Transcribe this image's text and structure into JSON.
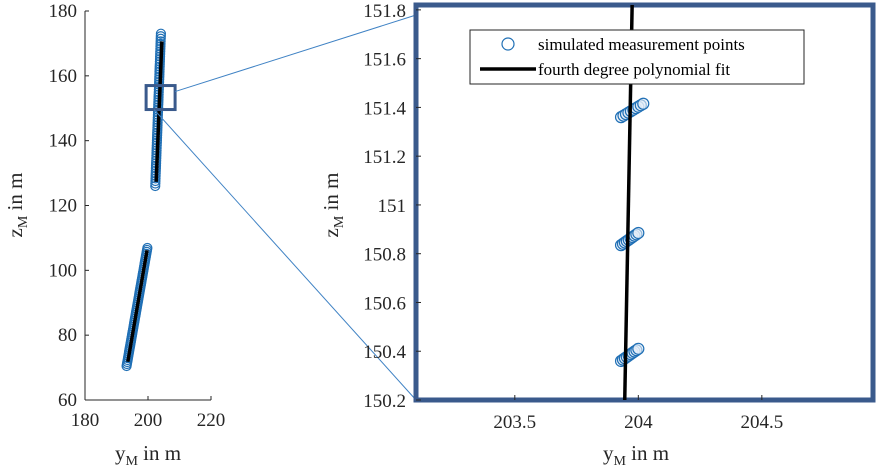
{
  "chart_data": [
    {
      "type": "scatter",
      "panel": "overview",
      "xlabel": {
        "main": "y",
        "sub": "M",
        "rest": " in m"
      },
      "ylabel": {
        "main": "z",
        "sub": "M",
        "rest": " in m"
      },
      "xlim": [
        180,
        220
      ],
      "ylim": [
        60,
        180
      ],
      "xticks": [
        "180",
        "200",
        "220"
      ],
      "xtick_values": [
        180,
        200,
        220
      ],
      "yticks": [
        "60",
        "80",
        "100",
        "120",
        "140",
        "160",
        "180"
      ],
      "ytick_values": [
        60,
        80,
        100,
        120,
        140,
        160,
        180
      ],
      "zoom_box": {
        "xmin": 199.4,
        "xmax": 208.6,
        "ymin": 149.6,
        "ymax": 157.0
      },
      "series": [
        {
          "name": "simulated measurement points",
          "kind": "markers",
          "segments": [
            {
              "x_start": 193.2,
              "y_start": 70.5,
              "x_end": 199.8,
              "y_end": 106.9
            },
            {
              "x_start": 202.3,
              "y_start": 126.0,
              "x_end": 204.1,
              "y_end": 173.0
            }
          ]
        },
        {
          "name": "fourth degree polynomial fit",
          "kind": "line",
          "segments": [
            {
              "x_start": 193.6,
              "y_start": 71.8,
              "x_end": 199.7,
              "y_end": 106.2
            },
            {
              "x_start": 202.6,
              "y_start": 127.3,
              "x_end": 204.4,
              "y_end": 170.6
            }
          ]
        }
      ]
    },
    {
      "type": "scatter",
      "panel": "zoom",
      "xlabel": {
        "main": "y",
        "sub": "M",
        "rest": " in m"
      },
      "ylabel": {
        "main": "z",
        "sub": "M",
        "rest": " in m"
      },
      "xlim": [
        203.1,
        204.95
      ],
      "ylim": [
        150.2,
        151.82
      ],
      "xticks": [
        "203.5",
        "204",
        "204.5"
      ],
      "xtick_values": [
        203.5,
        204.0,
        204.5
      ],
      "yticks": [
        "150.2",
        "150.4",
        "150.6",
        "150.8",
        "151",
        "151.2",
        "151.4",
        "151.6",
        "151.8"
      ],
      "ytick_values": [
        150.2,
        150.4,
        150.6,
        150.8,
        151.0,
        151.2,
        151.4,
        151.6,
        151.8
      ],
      "legend_position": "top-right",
      "series": [
        {
          "name": "simulated measurement points",
          "kind": "markers",
          "clusters": [
            {
              "x_start": 203.93,
              "y_start": 150.36,
              "x_end": 204.0,
              "y_end": 150.41
            },
            {
              "x_start": 203.93,
              "y_start": 150.835,
              "x_end": 204.0,
              "y_end": 150.885
            },
            {
              "x_start": 203.93,
              "y_start": 151.36,
              "x_end": 204.02,
              "y_end": 151.415
            }
          ]
        },
        {
          "name": "fourth degree polynomial fit",
          "kind": "line",
          "points": [
            [
              203.945,
              150.2
            ],
            [
              203.975,
              151.82
            ]
          ]
        }
      ]
    }
  ],
  "legend": {
    "markers_label": "simulated measurement points",
    "line_label": "fourth degree polynomial fit"
  },
  "colors": {
    "marker": "#1f6fb5",
    "fit_line": "#000000",
    "zoom_frame": "#3a5a8c",
    "connector": "#3f82c4",
    "axis": "#262626"
  }
}
